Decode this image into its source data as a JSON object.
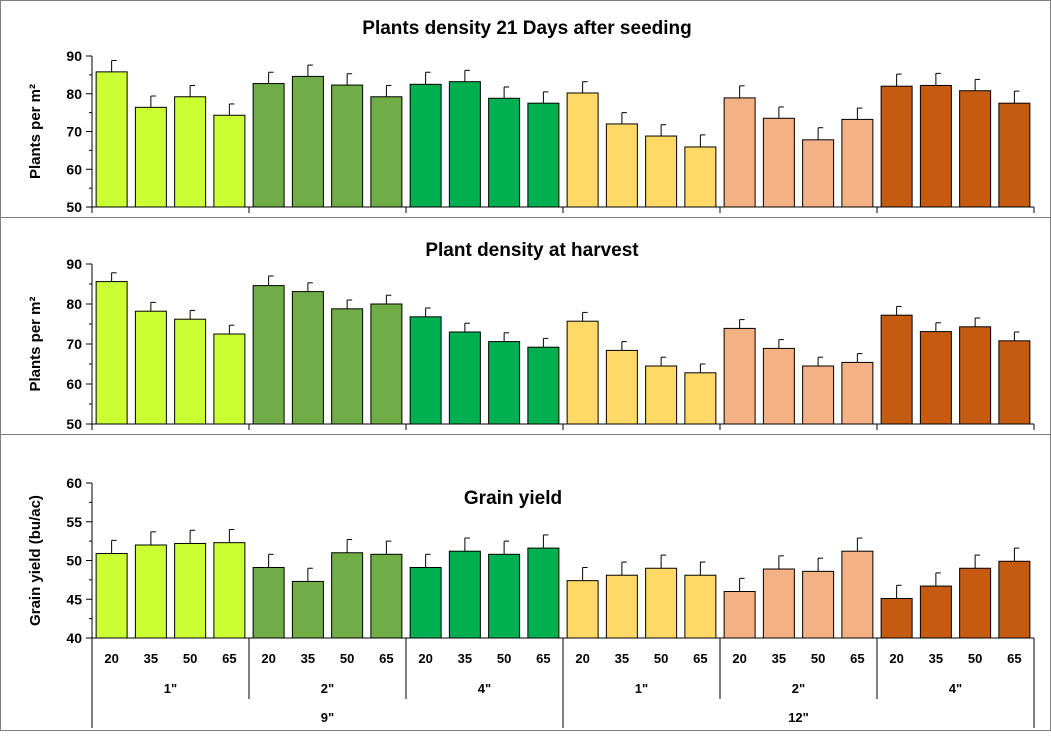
{
  "colors": {
    "lime": "#ccff33",
    "olive_green": "#70ad47",
    "green": "#00b050",
    "light_yellow": "#ffd966",
    "peach": "#f4b183",
    "rust": "#c55a11",
    "border": "#7f7f7f"
  },
  "x_axis": {
    "categories": [
      "20",
      "35",
      "50",
      "65",
      "20",
      "35",
      "50",
      "65",
      "20",
      "35",
      "50",
      "65",
      "20",
      "35",
      "50",
      "65",
      "20",
      "35",
      "50",
      "65",
      "20",
      "35",
      "50",
      "65"
    ],
    "groups_level1": [
      "1\"",
      "2\"",
      "4\"",
      "1\"",
      "2\"",
      "4\""
    ],
    "groups_level2": [
      "9\"",
      "12\""
    ]
  },
  "chart_data": [
    {
      "type": "bar",
      "title": "Plants density  21 Days after seeding",
      "ylabel": "Plants per m²",
      "ylim": [
        50,
        90
      ],
      "yticks": [
        "50",
        "60",
        "70",
        "80",
        "90"
      ],
      "grid": false,
      "values": [
        85.8,
        76.4,
        79.2,
        74.3,
        82.7,
        84.6,
        82.3,
        79.2,
        82.5,
        83.2,
        78.8,
        77.5,
        80.2,
        72.0,
        68.8,
        65.9,
        78.9,
        73.5,
        67.8,
        73.2,
        82.0,
        82.2,
        80.8,
        77.5
      ],
      "errors": [
        3.0,
        3.0,
        3.0,
        3.0,
        3.0,
        3.0,
        3.0,
        3.0,
        3.2,
        3.0,
        3.0,
        3.0,
        3.0,
        3.0,
        3.0,
        3.2,
        3.2,
        3.0,
        3.2,
        3.0,
        3.2,
        3.2,
        3.0,
        3.2
      ]
    },
    {
      "type": "bar",
      "title": "Plant density at harvest",
      "ylabel": "Plants per m²",
      "ylim": [
        50,
        90
      ],
      "yticks": [
        "50",
        "60",
        "70",
        "80",
        "90"
      ],
      "grid": false,
      "values": [
        85.6,
        78.2,
        76.2,
        72.5,
        84.6,
        83.1,
        78.8,
        80.0,
        76.8,
        73.0,
        70.6,
        69.2,
        75.7,
        68.4,
        64.5,
        62.8,
        73.9,
        68.9,
        64.5,
        65.4,
        77.2,
        73.1,
        74.3,
        70.8
      ],
      "errors": [
        2.2,
        2.2,
        2.2,
        2.2,
        2.4,
        2.2,
        2.2,
        2.2,
        2.2,
        2.2,
        2.2,
        2.2,
        2.2,
        2.2,
        2.2,
        2.2,
        2.2,
        2.2,
        2.2,
        2.2,
        2.2,
        2.2,
        2.2,
        2.2
      ]
    },
    {
      "type": "bar",
      "title": "Grain yield",
      "ylabel": "Grain yield (bu/ac)",
      "ylim": [
        40,
        60
      ],
      "yticks": [
        "40",
        "45",
        "50",
        "55",
        "60"
      ],
      "grid": false,
      "values": [
        50.9,
        52.0,
        52.2,
        52.3,
        49.1,
        47.3,
        51.0,
        50.8,
        49.1,
        51.2,
        50.8,
        51.6,
        47.4,
        48.1,
        49.0,
        48.1,
        46.0,
        48.9,
        48.6,
        51.2,
        45.1,
        46.7,
        49.0,
        49.9
      ],
      "errors": [
        1.7,
        1.7,
        1.7,
        1.7,
        1.7,
        1.7,
        1.7,
        1.7,
        1.7,
        1.7,
        1.7,
        1.7,
        1.7,
        1.7,
        1.7,
        1.7,
        1.7,
        1.7,
        1.7,
        1.7,
        1.7,
        1.7,
        1.7,
        1.7
      ]
    }
  ]
}
